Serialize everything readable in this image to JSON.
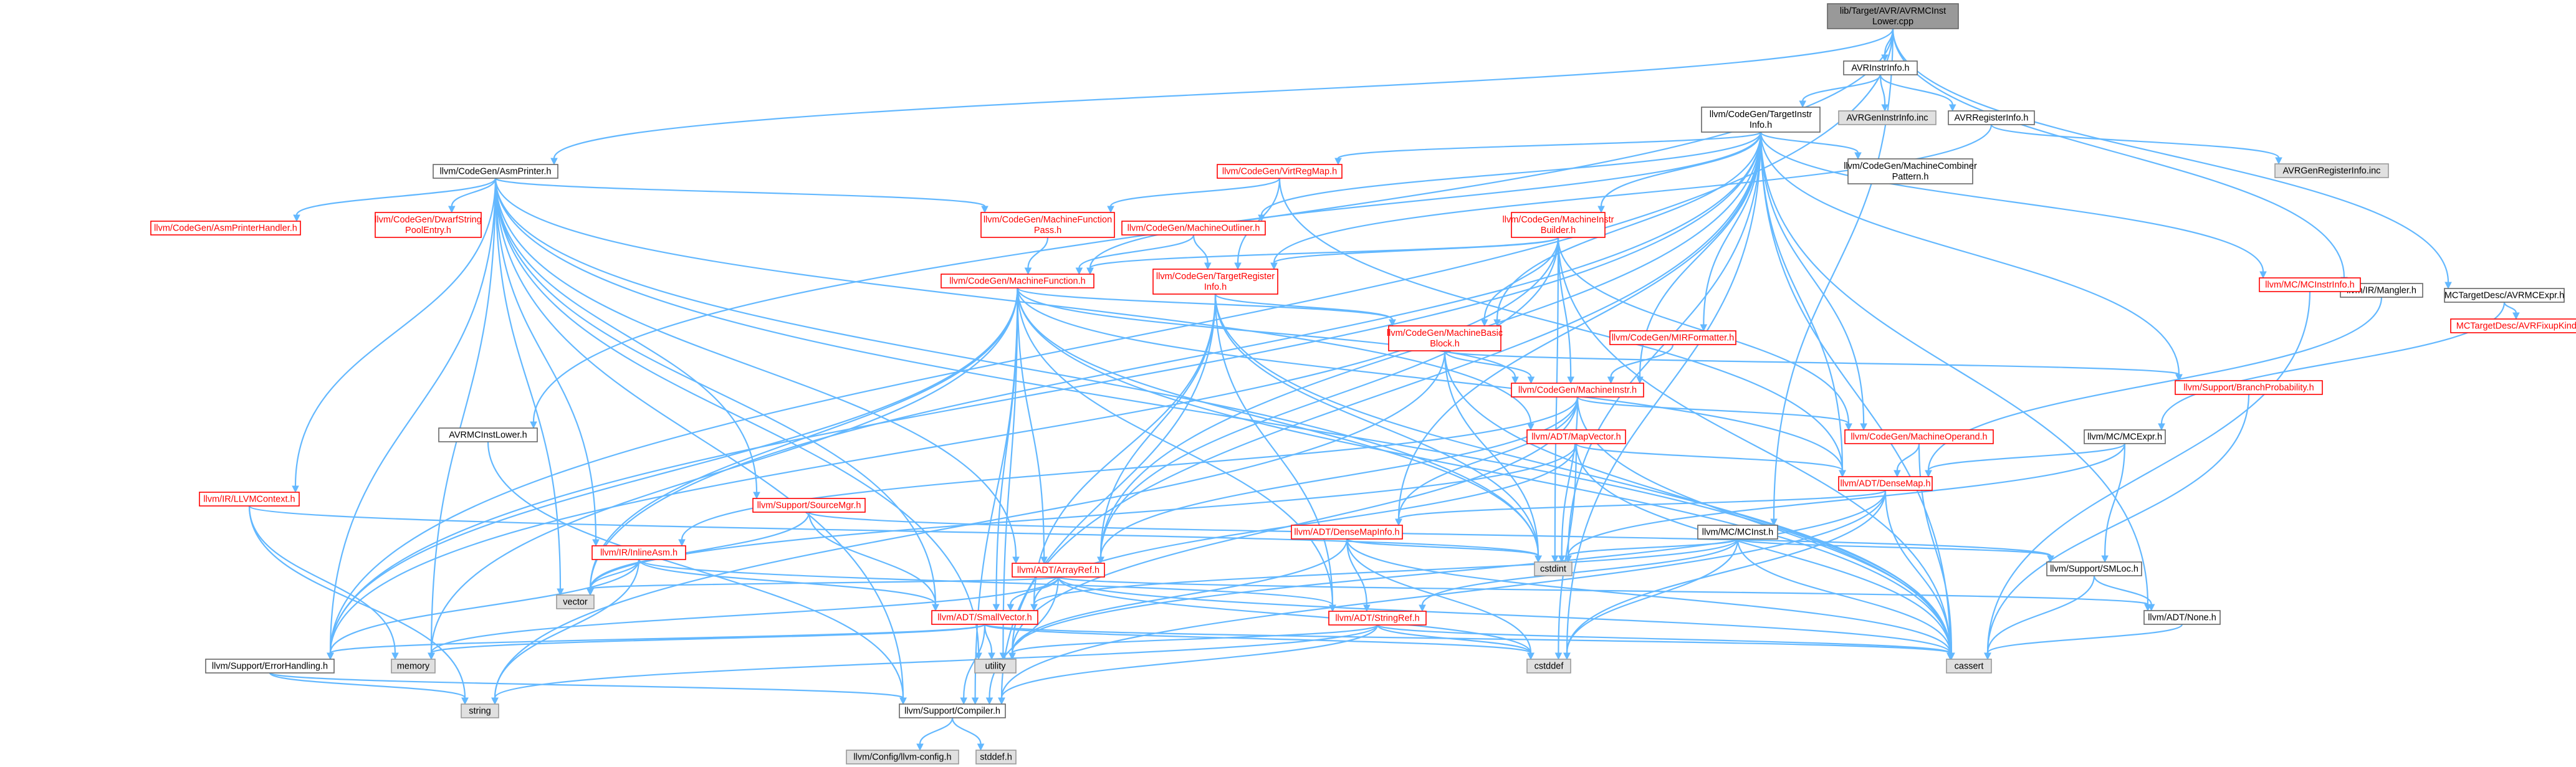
{
  "nodes": [
    {
      "id": "root",
      "lines": [
        "lib/Target/AVR/AVRMCInst",
        "Lower.cpp"
      ],
      "style": "root"
    },
    {
      "id": "avrinstrinfo",
      "lines": [
        "AVRInstrInfo.h"
      ],
      "style": "black"
    },
    {
      "id": "avrgeninstr",
      "lines": [
        "AVRGenInstrInfo.inc"
      ],
      "style": "gray"
    },
    {
      "id": "avrreginfo",
      "lines": [
        "AVRRegisterInfo.h"
      ],
      "style": "black"
    },
    {
      "id": "avrgenreg",
      "lines": [
        "AVRGenRegisterInfo.inc"
      ],
      "style": "gray"
    },
    {
      "id": "tii",
      "lines": [
        "llvm/CodeGen/TargetInstr",
        "Info.h"
      ],
      "style": "black"
    },
    {
      "id": "asmprinter",
      "lines": [
        "llvm/CodeGen/AsmPrinter.h"
      ],
      "style": "black"
    },
    {
      "id": "mangler",
      "lines": [
        "llvm/IR/Mangler.h"
      ],
      "style": "black"
    },
    {
      "id": "mctargetexpr",
      "lines": [
        "MCTargetDesc/AVRMCExpr.h"
      ],
      "style": "black"
    },
    {
      "id": "fixupkinds",
      "lines": [
        "MCTargetDesc/AVRFixupKinds.h"
      ],
      "style": "red"
    },
    {
      "id": "asmhandler",
      "lines": [
        "llvm/CodeGen/AsmPrinterHandler.h"
      ],
      "style": "red"
    },
    {
      "id": "dwarfstring",
      "lines": [
        "llvm/CodeGen/DwarfString",
        "PoolEntry.h"
      ],
      "style": "red"
    },
    {
      "id": "mfpass",
      "lines": [
        "llvm/CodeGen/MachineFunction",
        "Pass.h"
      ],
      "style": "red"
    },
    {
      "id": "virtregmap",
      "lines": [
        "llvm/CodeGen/VirtRegMap.h"
      ],
      "style": "red"
    },
    {
      "id": "moutliner",
      "lines": [
        "llvm/CodeGen/MachineOutliner.h"
      ],
      "style": "red"
    },
    {
      "id": "combiner",
      "lines": [
        "llvm/CodeGen/MachineCombiner",
        "Pattern.h"
      ],
      "style": "black"
    },
    {
      "id": "mib",
      "lines": [
        "llvm/CodeGen/MachineInstr",
        "Builder.h"
      ],
      "style": "red"
    },
    {
      "id": "mcinstrinfo",
      "lines": [
        "llvm/MC/MCInstrInfo.h"
      ],
      "style": "red"
    },
    {
      "id": "mf",
      "lines": [
        "llvm/CodeGen/MachineFunction.h"
      ],
      "style": "red"
    },
    {
      "id": "tri",
      "lines": [
        "llvm/CodeGen/TargetRegister",
        "Info.h"
      ],
      "style": "red"
    },
    {
      "id": "mbb",
      "lines": [
        "llvm/CodeGen/MachineBasic",
        "Block.h"
      ],
      "style": "red"
    },
    {
      "id": "mirformatter",
      "lines": [
        "llvm/CodeGen/MIRFormatter.h"
      ],
      "style": "red"
    },
    {
      "id": "branchprob",
      "lines": [
        "llvm/Support/BranchProbability.h"
      ],
      "style": "red"
    },
    {
      "id": "mi",
      "lines": [
        "llvm/CodeGen/MachineInstr.h"
      ],
      "style": "red"
    },
    {
      "id": "mcexpr",
      "lines": [
        "llvm/MC/MCExpr.h"
      ],
      "style": "black"
    },
    {
      "id": "avrmcinstlower",
      "lines": [
        "AVRMCInstLower.h"
      ],
      "style": "black"
    },
    {
      "id": "mapvector",
      "lines": [
        "llvm/ADT/MapVector.h"
      ],
      "style": "red"
    },
    {
      "id": "moperand",
      "lines": [
        "llvm/CodeGen/MachineOperand.h"
      ],
      "style": "red"
    },
    {
      "id": "densemap",
      "lines": [
        "llvm/ADT/DenseMap.h"
      ],
      "style": "red"
    },
    {
      "id": "llvmcontext",
      "lines": [
        "llvm/IR/LLVMContext.h"
      ],
      "style": "red"
    },
    {
      "id": "sourcemgr",
      "lines": [
        "llvm/Support/SourceMgr.h"
      ],
      "style": "red"
    },
    {
      "id": "densemapinfo",
      "lines": [
        "llvm/ADT/DenseMapInfo.h"
      ],
      "style": "red"
    },
    {
      "id": "mcinst",
      "lines": [
        "llvm/MC/MCInst.h"
      ],
      "style": "black"
    },
    {
      "id": "inlineasm",
      "lines": [
        "llvm/IR/InlineAsm.h"
      ],
      "style": "red"
    },
    {
      "id": "arrayref",
      "lines": [
        "llvm/ADT/ArrayRef.h"
      ],
      "style": "red"
    },
    {
      "id": "cstdint",
      "lines": [
        "cstdint"
      ],
      "style": "gray"
    },
    {
      "id": "smloc",
      "lines": [
        "llvm/Support/SMLoc.h"
      ],
      "style": "black"
    },
    {
      "id": "vector",
      "lines": [
        "vector"
      ],
      "style": "gray"
    },
    {
      "id": "smallvector",
      "lines": [
        "llvm/ADT/SmallVector.h"
      ],
      "style": "red"
    },
    {
      "id": "stringref",
      "lines": [
        "llvm/ADT/StringRef.h"
      ],
      "style": "red"
    },
    {
      "id": "none",
      "lines": [
        "llvm/ADT/None.h"
      ],
      "style": "black"
    },
    {
      "id": "errorhandling",
      "lines": [
        "llvm/Support/ErrorHandling.h"
      ],
      "style": "black"
    },
    {
      "id": "memory",
      "lines": [
        "memory"
      ],
      "style": "gray"
    },
    {
      "id": "utility",
      "lines": [
        "utility"
      ],
      "style": "gray"
    },
    {
      "id": "cstddef",
      "lines": [
        "cstddef"
      ],
      "style": "gray"
    },
    {
      "id": "cassert",
      "lines": [
        "cassert"
      ],
      "style": "gray"
    },
    {
      "id": "string",
      "lines": [
        "string"
      ],
      "style": "gray"
    },
    {
      "id": "compiler",
      "lines": [
        "llvm/Support/Compiler.h"
      ],
      "style": "black"
    },
    {
      "id": "config",
      "lines": [
        "llvm/Config/llvm-config.h"
      ],
      "style": "gray"
    },
    {
      "id": "stddef",
      "lines": [
        "stddef.h"
      ],
      "style": "gray"
    }
  ],
  "edges": [
    [
      "root",
      "avrinstrinfo"
    ],
    [
      "root",
      "asmprinter"
    ],
    [
      "root",
      "mangler"
    ],
    [
      "root",
      "mctargetexpr"
    ],
    [
      "root",
      "avrmcinstlower"
    ],
    [
      "root",
      "errorhandling"
    ],
    [
      "root",
      "mcinst"
    ],
    [
      "avrinstrinfo",
      "avrgeninstr"
    ],
    [
      "avrinstrinfo",
      "avrreginfo"
    ],
    [
      "avrinstrinfo",
      "tii"
    ],
    [
      "avrreginfo",
      "avrgenreg"
    ],
    [
      "avrreginfo",
      "tri"
    ],
    [
      "tii",
      "virtregmap"
    ],
    [
      "tii",
      "moutliner"
    ],
    [
      "tii",
      "combiner"
    ],
    [
      "tii",
      "mib"
    ],
    [
      "tii",
      "mcinstrinfo"
    ],
    [
      "tii",
      "mf"
    ],
    [
      "tii",
      "mbb"
    ],
    [
      "tii",
      "mirformatter"
    ],
    [
      "tii",
      "branchprob"
    ],
    [
      "tii",
      "mi"
    ],
    [
      "tii",
      "moperand"
    ],
    [
      "tii",
      "densemap"
    ],
    [
      "tii",
      "densemapinfo"
    ],
    [
      "tii",
      "arrayref"
    ],
    [
      "tii",
      "cstdint"
    ],
    [
      "tii",
      "cassert"
    ],
    [
      "tii",
      "cstddef"
    ],
    [
      "tii",
      "utility"
    ],
    [
      "tii",
      "none"
    ],
    [
      "tii",
      "errorhandling"
    ],
    [
      "tii",
      "vector"
    ],
    [
      "asmprinter",
      "asmhandler"
    ],
    [
      "asmprinter",
      "dwarfstring"
    ],
    [
      "asmprinter",
      "mfpass"
    ],
    [
      "asmprinter",
      "llvmcontext"
    ],
    [
      "asmprinter",
      "sourcemgr"
    ],
    [
      "asmprinter",
      "inlineasm"
    ],
    [
      "asmprinter",
      "mapvector"
    ],
    [
      "asmprinter",
      "smallvector"
    ],
    [
      "asmprinter",
      "arrayref"
    ],
    [
      "asmprinter",
      "cstdint"
    ],
    [
      "asmprinter",
      "errorhandling"
    ],
    [
      "asmprinter",
      "memory"
    ],
    [
      "asmprinter",
      "utility"
    ],
    [
      "asmprinter",
      "vector"
    ],
    [
      "asmprinter",
      "compiler"
    ],
    [
      "asmprinter",
      "cassert"
    ],
    [
      "mangler",
      "densemap"
    ],
    [
      "mctargetexpr",
      "mcexpr"
    ],
    [
      "mctargetexpr",
      "fixupkinds"
    ],
    [
      "virtregmap",
      "mfpass"
    ],
    [
      "virtregmap",
      "tri"
    ],
    [
      "virtregmap",
      "densemap"
    ],
    [
      "moutliner",
      "mf"
    ],
    [
      "moutliner",
      "tri"
    ],
    [
      "mib",
      "mf"
    ],
    [
      "mib",
      "tri"
    ],
    [
      "mib",
      "mbb"
    ],
    [
      "mib",
      "mi"
    ],
    [
      "mib",
      "moperand"
    ],
    [
      "mib",
      "arrayref"
    ],
    [
      "mib",
      "cstdint"
    ],
    [
      "mib",
      "cassert"
    ],
    [
      "mib",
      "errorhandling"
    ],
    [
      "mcinstrinfo",
      "cassert"
    ],
    [
      "mfpass",
      "mf"
    ],
    [
      "mf",
      "mbb"
    ],
    [
      "mf",
      "mi"
    ],
    [
      "mf",
      "densemap"
    ],
    [
      "mf",
      "arrayref"
    ],
    [
      "mf",
      "smallvector"
    ],
    [
      "mf",
      "stringref"
    ],
    [
      "mf",
      "errorhandling"
    ],
    [
      "mf",
      "memory"
    ],
    [
      "mf",
      "utility"
    ],
    [
      "mf",
      "vector"
    ],
    [
      "mf",
      "cassert"
    ],
    [
      "mf",
      "cstdint"
    ],
    [
      "mf",
      "compiler"
    ],
    [
      "tri",
      "mbb"
    ],
    [
      "tri",
      "arrayref"
    ],
    [
      "tri",
      "smallvector"
    ],
    [
      "tri",
      "stringref"
    ],
    [
      "tri",
      "cassert"
    ],
    [
      "tri",
      "cstdint"
    ],
    [
      "tri",
      "compiler"
    ],
    [
      "mbb",
      "mi"
    ],
    [
      "mbb",
      "branchprob"
    ],
    [
      "mbb",
      "cassert"
    ],
    [
      "mbb",
      "cstdint"
    ],
    [
      "mbb",
      "string"
    ],
    [
      "mirformatter",
      "mi"
    ],
    [
      "branchprob",
      "cassert"
    ],
    [
      "mi",
      "moperand"
    ],
    [
      "mi",
      "densemapinfo"
    ],
    [
      "mi",
      "inlineasm"
    ],
    [
      "mi",
      "arrayref"
    ],
    [
      "mi",
      "cstdint"
    ],
    [
      "mi",
      "utility"
    ],
    [
      "mi",
      "cassert"
    ],
    [
      "mapvector",
      "densemap"
    ],
    [
      "mapvector",
      "smallvector"
    ],
    [
      "mapvector",
      "cassert"
    ],
    [
      "mapvector",
      "cstddef"
    ],
    [
      "mapvector",
      "vector"
    ],
    [
      "moperand",
      "densemap"
    ],
    [
      "moperand",
      "cassert"
    ],
    [
      "densemap",
      "densemapinfo"
    ],
    [
      "densemap",
      "cassert"
    ],
    [
      "densemap",
      "cstddef"
    ],
    [
      "densemap",
      "utility"
    ],
    [
      "densemap",
      "compiler"
    ],
    [
      "densemapinfo",
      "stringref"
    ],
    [
      "densemapinfo",
      "cassert"
    ],
    [
      "densemapinfo",
      "cstddef"
    ],
    [
      "densemapinfo",
      "cstdint"
    ],
    [
      "densemapinfo",
      "utility"
    ],
    [
      "mcexpr",
      "densemap"
    ],
    [
      "mcexpr",
      "smloc"
    ],
    [
      "mcexpr",
      "cstdint"
    ],
    [
      "mcinst",
      "smallvector"
    ],
    [
      "mcinst",
      "stringref"
    ],
    [
      "mcinst",
      "smloc"
    ],
    [
      "mcinst",
      "cstdint"
    ],
    [
      "mcinst",
      "cstddef"
    ],
    [
      "mcinst",
      "cassert"
    ],
    [
      "avrmcinstlower",
      "compiler"
    ],
    [
      "llvmcontext",
      "memory"
    ],
    [
      "llvmcontext",
      "string"
    ],
    [
      "llvmcontext",
      "cstdint"
    ],
    [
      "sourcemgr",
      "smloc"
    ],
    [
      "sourcemgr",
      "smallvector"
    ],
    [
      "sourcemgr",
      "vector"
    ],
    [
      "inlineasm",
      "smallvector"
    ],
    [
      "inlineasm",
      "stringref"
    ],
    [
      "inlineasm",
      "errorhandling"
    ],
    [
      "inlineasm",
      "string"
    ],
    [
      "inlineasm",
      "vector"
    ],
    [
      "arrayref",
      "smallvector"
    ],
    [
      "arrayref",
      "none"
    ],
    [
      "arrayref",
      "compiler"
    ],
    [
      "arrayref",
      "cassert"
    ],
    [
      "arrayref",
      "memory"
    ],
    [
      "arrayref",
      "vector"
    ],
    [
      "arrayref",
      "cstddef"
    ],
    [
      "smloc",
      "none"
    ],
    [
      "smloc",
      "cassert"
    ],
    [
      "smallvector",
      "errorhandling"
    ],
    [
      "smallvector",
      "memory"
    ],
    [
      "smallvector",
      "utility"
    ],
    [
      "smallvector",
      "cassert"
    ],
    [
      "smallvector",
      "cstddef"
    ],
    [
      "smallvector",
      "compiler"
    ],
    [
      "stringref",
      "compiler"
    ],
    [
      "stringref",
      "cassert"
    ],
    [
      "stringref",
      "cstddef"
    ],
    [
      "stringref",
      "string"
    ],
    [
      "stringref",
      "utility"
    ],
    [
      "none",
      "cassert"
    ],
    [
      "errorhandling",
      "compiler"
    ],
    [
      "errorhandling",
      "string"
    ],
    [
      "compiler",
      "config"
    ],
    [
      "compiler",
      "stddef"
    ]
  ]
}
